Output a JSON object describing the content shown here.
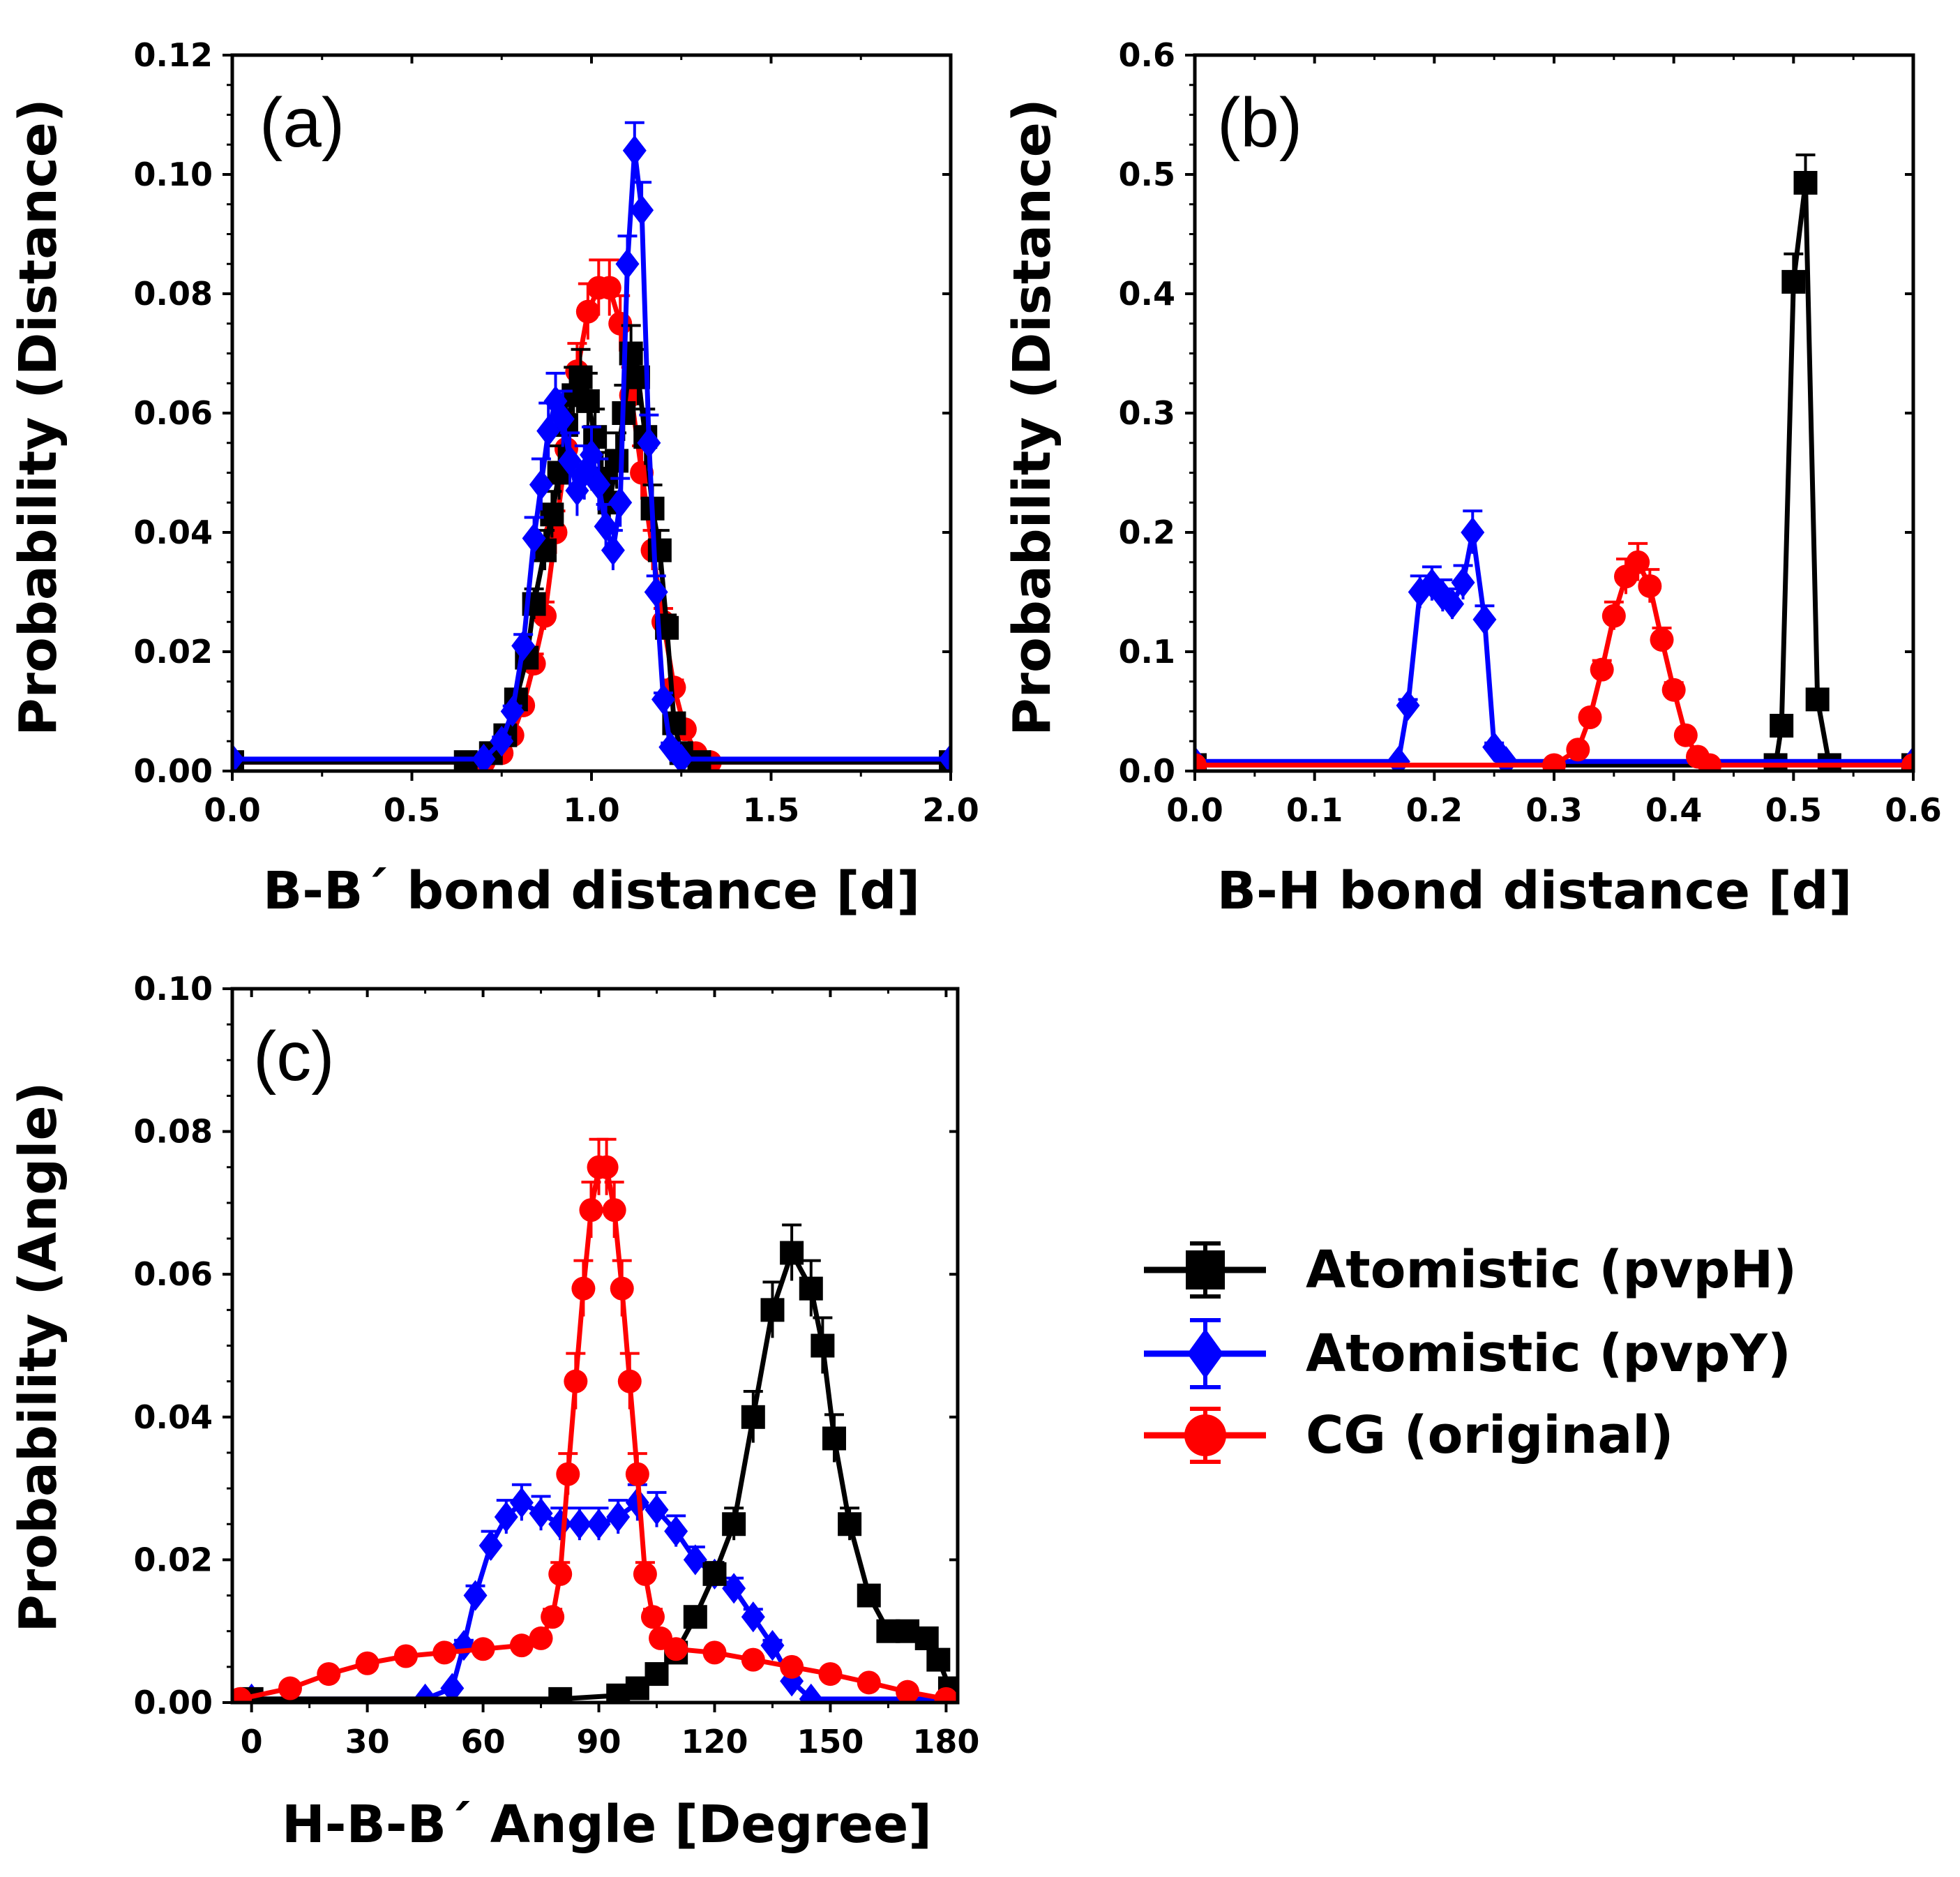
{
  "chart_data": [
    {
      "id": "a",
      "type": "line",
      "panel_label": "(a)",
      "xlabel": "B-B´ bond distance [d]",
      "ylabel": "Probability (Distance)",
      "xlim": [
        0.0,
        2.0
      ],
      "ylim": [
        0.0,
        0.12
      ],
      "xticks": [
        "0.0",
        "0.5",
        "1.0",
        "1.5",
        "2.0"
      ],
      "yticks": [
        "0.00",
        "0.02",
        "0.04",
        "0.06",
        "0.08",
        "0.10",
        "0.12"
      ],
      "series": [
        {
          "name": "Atomistic (pvpH)",
          "color": "#000000",
          "marker": "square",
          "points": [
            [
              0.0,
              0.0015
            ],
            [
              0.65,
              0.0015
            ],
            [
              0.72,
              0.003
            ],
            [
              0.76,
              0.006
            ],
            [
              0.79,
              0.012
            ],
            [
              0.82,
              0.019
            ],
            [
              0.84,
              0.028
            ],
            [
              0.87,
              0.037
            ],
            [
              0.89,
              0.043
            ],
            [
              0.91,
              0.05
            ],
            [
              0.93,
              0.058
            ],
            [
              0.95,
              0.063
            ],
            [
              0.97,
              0.066
            ],
            [
              0.99,
              0.062
            ],
            [
              1.01,
              0.056
            ],
            [
              1.03,
              0.049
            ],
            [
              1.05,
              0.045
            ],
            [
              1.07,
              0.052
            ],
            [
              1.09,
              0.06
            ],
            [
              1.11,
              0.07
            ],
            [
              1.13,
              0.066
            ],
            [
              1.15,
              0.056
            ],
            [
              1.17,
              0.044
            ],
            [
              1.19,
              0.037
            ],
            [
              1.21,
              0.024
            ],
            [
              1.23,
              0.008
            ],
            [
              1.25,
              0.003
            ],
            [
              1.3,
              0.0015
            ],
            [
              2.0,
              0.0015
            ]
          ]
        },
        {
          "name": "Atomistic (pvpY)",
          "color": "#0000ff",
          "marker": "diamond",
          "points": [
            [
              0.0,
              0.002
            ],
            [
              0.7,
              0.002
            ],
            [
              0.75,
              0.005
            ],
            [
              0.78,
              0.01
            ],
            [
              0.81,
              0.021
            ],
            [
              0.84,
              0.039
            ],
            [
              0.86,
              0.048
            ],
            [
              0.88,
              0.057
            ],
            [
              0.9,
              0.062
            ],
            [
              0.92,
              0.059
            ],
            [
              0.94,
              0.052
            ],
            [
              0.96,
              0.047
            ],
            [
              0.98,
              0.05
            ],
            [
              1.0,
              0.053
            ],
            [
              1.02,
              0.048
            ],
            [
              1.04,
              0.041
            ],
            [
              1.06,
              0.037
            ],
            [
              1.08,
              0.045
            ],
            [
              1.1,
              0.085
            ],
            [
              1.12,
              0.104
            ],
            [
              1.14,
              0.094
            ],
            [
              1.16,
              0.055
            ],
            [
              1.18,
              0.03
            ],
            [
              1.2,
              0.012
            ],
            [
              1.22,
              0.004
            ],
            [
              1.25,
              0.002
            ],
            [
              2.0,
              0.002
            ]
          ]
        },
        {
          "name": "CG (original)",
          "color": "#ff0000",
          "marker": "circle",
          "points": [
            [
              0.0,
              0.0015
            ],
            [
              0.7,
              0.0015
            ],
            [
              0.75,
              0.003
            ],
            [
              0.78,
              0.006
            ],
            [
              0.81,
              0.011
            ],
            [
              0.84,
              0.018
            ],
            [
              0.87,
              0.026
            ],
            [
              0.9,
              0.04
            ],
            [
              0.93,
              0.054
            ],
            [
              0.96,
              0.067
            ],
            [
              0.99,
              0.077
            ],
            [
              1.02,
              0.081
            ],
            [
              1.05,
              0.081
            ],
            [
              1.08,
              0.075
            ],
            [
              1.11,
              0.063
            ],
            [
              1.14,
              0.05
            ],
            [
              1.17,
              0.037
            ],
            [
              1.2,
              0.025
            ],
            [
              1.23,
              0.014
            ],
            [
              1.26,
              0.007
            ],
            [
              1.29,
              0.003
            ],
            [
              1.33,
              0.0015
            ],
            [
              2.0,
              0.0015
            ]
          ]
        }
      ]
    },
    {
      "id": "b",
      "type": "line",
      "panel_label": "(b)",
      "xlabel": "B-H bond distance [d]",
      "ylabel": "Probability (Distance)",
      "xlim": [
        0.0,
        0.6
      ],
      "ylim": [
        0.0,
        0.6
      ],
      "xticks": [
        "0.0",
        "0.1",
        "0.2",
        "0.3",
        "0.4",
        "0.5",
        "0.6"
      ],
      "yticks": [
        "0.0",
        "0.1",
        "0.2",
        "0.3",
        "0.4",
        "0.5",
        "0.6"
      ],
      "series": [
        {
          "name": "Atomistic (pvpH)",
          "color": "#000000",
          "marker": "square",
          "points": [
            [
              0.0,
              0.005
            ],
            [
              0.485,
              0.005
            ],
            [
              0.49,
              0.038
            ],
            [
              0.5,
              0.41
            ],
            [
              0.51,
              0.493
            ],
            [
              0.52,
              0.06
            ],
            [
              0.53,
              0.005
            ],
            [
              0.6,
              0.005
            ]
          ]
        },
        {
          "name": "Atomistic (pvpY)",
          "color": "#0000ff",
          "marker": "diamond",
          "points": [
            [
              0.0,
              0.008
            ],
            [
              0.17,
              0.008
            ],
            [
              0.178,
              0.055
            ],
            [
              0.188,
              0.15
            ],
            [
              0.198,
              0.157
            ],
            [
              0.207,
              0.147
            ],
            [
              0.215,
              0.14
            ],
            [
              0.224,
              0.158
            ],
            [
              0.232,
              0.2
            ],
            [
              0.242,
              0.127
            ],
            [
              0.25,
              0.02
            ],
            [
              0.26,
              0.008
            ],
            [
              0.6,
              0.008
            ]
          ]
        },
        {
          "name": "CG (original)",
          "color": "#ff0000",
          "marker": "circle",
          "points": [
            [
              0.0,
              0.005
            ],
            [
              0.3,
              0.005
            ],
            [
              0.32,
              0.018
            ],
            [
              0.33,
              0.045
            ],
            [
              0.34,
              0.085
            ],
            [
              0.35,
              0.13
            ],
            [
              0.36,
              0.163
            ],
            [
              0.37,
              0.175
            ],
            [
              0.38,
              0.155
            ],
            [
              0.39,
              0.11
            ],
            [
              0.4,
              0.068
            ],
            [
              0.41,
              0.03
            ],
            [
              0.42,
              0.012
            ],
            [
              0.43,
              0.005
            ],
            [
              0.6,
              0.005
            ]
          ]
        }
      ]
    },
    {
      "id": "c",
      "type": "line",
      "panel_label": "(c)",
      "xlabel": "H-B-B´ Angle [Degree]",
      "ylabel": "Probability (Angle)",
      "xlim": [
        -5,
        183
      ],
      "ylim": [
        0.0,
        0.1
      ],
      "xticks": [
        "0",
        "30",
        "60",
        "90",
        "120",
        "150",
        "180"
      ],
      "yticks": [
        "0.00",
        "0.02",
        "0.04",
        "0.06",
        "0.08",
        "0.10"
      ],
      "series": [
        {
          "name": "Atomistic (pvpH)",
          "color": "#000000",
          "marker": "square",
          "points": [
            [
              0,
              0.0005
            ],
            [
              80,
              0.0005
            ],
            [
              95,
              0.001
            ],
            [
              100,
              0.002
            ],
            [
              105,
              0.004
            ],
            [
              110,
              0.007
            ],
            [
              115,
              0.012
            ],
            [
              120,
              0.018
            ],
            [
              125,
              0.025
            ],
            [
              130,
              0.04
            ],
            [
              135,
              0.055
            ],
            [
              140,
              0.063
            ],
            [
              145,
              0.058
            ],
            [
              148,
              0.05
            ],
            [
              151,
              0.037
            ],
            [
              155,
              0.025
            ],
            [
              160,
              0.015
            ],
            [
              165,
              0.01
            ],
            [
              170,
              0.01
            ],
            [
              175,
              0.009
            ],
            [
              178,
              0.006
            ],
            [
              181,
              0.002
            ]
          ]
        },
        {
          "name": "Atomistic (pvpY)",
          "color": "#0000ff",
          "marker": "diamond",
          "points": [
            [
              0,
              0.0005
            ],
            [
              45,
              0.0005
            ],
            [
              52,
              0.002
            ],
            [
              55,
              0.008
            ],
            [
              58,
              0.015
            ],
            [
              62,
              0.022
            ],
            [
              66,
              0.026
            ],
            [
              70,
              0.028
            ],
            [
              75,
              0.0265
            ],
            [
              80,
              0.025
            ],
            [
              85,
              0.025
            ],
            [
              90,
              0.025
            ],
            [
              95,
              0.026
            ],
            [
              100,
              0.028
            ],
            [
              105,
              0.027
            ],
            [
              110,
              0.024
            ],
            [
              115,
              0.02
            ],
            [
              120,
              0.018
            ],
            [
              125,
              0.016
            ],
            [
              130,
              0.012
            ],
            [
              135,
              0.008
            ],
            [
              140,
              0.003
            ],
            [
              145,
              0.0005
            ],
            [
              180,
              0.0005
            ]
          ]
        },
        {
          "name": "CG (original)",
          "color": "#ff0000",
          "marker": "circle",
          "points": [
            [
              -3,
              0.0005
            ],
            [
              10,
              0.002
            ],
            [
              20,
              0.004
            ],
            [
              30,
              0.0055
            ],
            [
              40,
              0.0065
            ],
            [
              50,
              0.007
            ],
            [
              60,
              0.0075
            ],
            [
              70,
              0.008
            ],
            [
              75,
              0.009
            ],
            [
              78,
              0.012
            ],
            [
              80,
              0.018
            ],
            [
              82,
              0.032
            ],
            [
              84,
              0.045
            ],
            [
              86,
              0.058
            ],
            [
              88,
              0.069
            ],
            [
              90,
              0.075
            ],
            [
              92,
              0.075
            ],
            [
              94,
              0.069
            ],
            [
              96,
              0.058
            ],
            [
              98,
              0.045
            ],
            [
              100,
              0.032
            ],
            [
              102,
              0.018
            ],
            [
              104,
              0.012
            ],
            [
              106,
              0.009
            ],
            [
              110,
              0.0075
            ],
            [
              120,
              0.007
            ],
            [
              130,
              0.006
            ],
            [
              140,
              0.005
            ],
            [
              150,
              0.004
            ],
            [
              160,
              0.0028
            ],
            [
              170,
              0.0015
            ],
            [
              180,
              0.0005
            ]
          ]
        }
      ]
    }
  ],
  "legend": [
    {
      "label": "Atomistic (pvpH)",
      "color": "#000000",
      "marker": "square"
    },
    {
      "label": "Atomistic (pvpY)",
      "color": "#0000ff",
      "marker": "diamond"
    },
    {
      "label": "CG (original)",
      "color": "#ff0000",
      "marker": "circle"
    }
  ]
}
